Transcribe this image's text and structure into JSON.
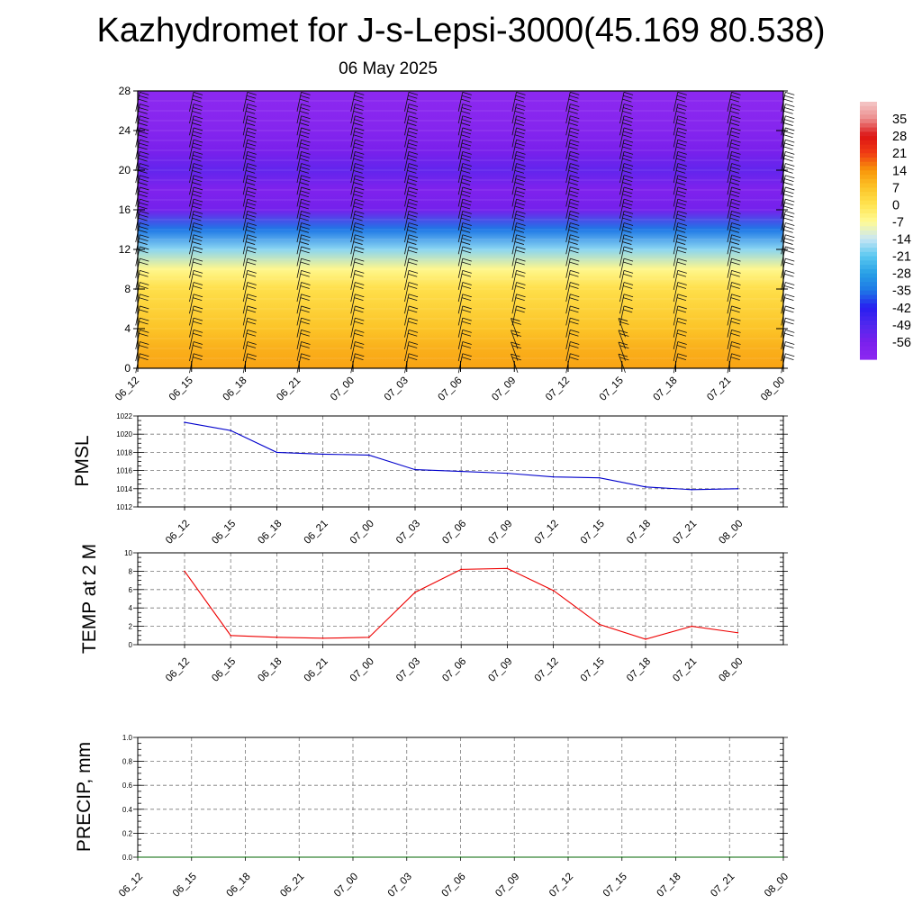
{
  "title": "Kazhydromet for J-s-Lepsi-3000(45.169 80.538)",
  "date": "06 May 2025",
  "colors": {
    "pmsl_line": "#0000cc",
    "temp_line": "#ee0000",
    "precip_line": "#006400",
    "grid": "#777777",
    "wind_barb": "#111111"
  },
  "chart_data": [
    {
      "type": "heatmap",
      "name": "cross-section",
      "x_ticks": [
        "06_12",
        "06_15",
        "06_18",
        "06_21",
        "07_00",
        "07_03",
        "07_06",
        "07_09",
        "07_12",
        "07_15",
        "07_18",
        "07_21",
        "08_00"
      ],
      "y_ticks": [
        "0",
        "4",
        "8",
        "12",
        "16",
        "20",
        "24",
        "28"
      ],
      "ylim": [
        0,
        28
      ],
      "colorbar": {
        "labels": [
          "35",
          "28",
          "21",
          "14",
          "7",
          "0",
          "-7",
          "-14",
          "-21",
          "-28",
          "-35",
          "-42",
          "-49",
          "-56"
        ],
        "range": [
          -63,
          42
        ]
      },
      "y_levels": [
        0,
        2,
        4,
        6,
        8,
        10,
        12,
        14,
        16,
        18,
        20,
        22,
        24,
        26,
        28
      ],
      "temperature_profile": [
        12,
        10,
        7,
        4,
        1,
        -6,
        -18,
        -35,
        -55,
        -58,
        -52,
        -56,
        -60,
        -62,
        -63
      ]
    },
    {
      "type": "line",
      "ylabel": "PMSL",
      "x": [
        "06_12",
        "06_15",
        "06_18",
        "06_21",
        "07_00",
        "07_03",
        "07_06",
        "07_09",
        "07_12",
        "07_15",
        "07_18",
        "07_21",
        "08_00"
      ],
      "values": [
        1021.3,
        1020.4,
        1018.0,
        1017.8,
        1017.7,
        1016.1,
        1015.9,
        1015.7,
        1015.3,
        1015.2,
        1014.2,
        1013.9,
        1014.0
      ],
      "ylim": [
        1012,
        1022
      ],
      "y_ticks": [
        "1012",
        "1014",
        "1016",
        "1018",
        "1020",
        "1022"
      ]
    },
    {
      "type": "line",
      "ylabel": "TEMP at 2 M",
      "x": [
        "06_12",
        "06_15",
        "06_18",
        "06_21",
        "07_00",
        "07_03",
        "07_06",
        "07_09",
        "07_12",
        "07_15",
        "07_18",
        "07_21",
        "08_00"
      ],
      "values": [
        8.0,
        1.0,
        0.8,
        0.7,
        0.8,
        5.7,
        8.2,
        8.3,
        5.9,
        2.2,
        0.6,
        2.0,
        1.3
      ],
      "ylim": [
        0,
        10
      ],
      "y_ticks": [
        "0",
        "2",
        "4",
        "6",
        "8",
        "10"
      ]
    },
    {
      "type": "line",
      "ylabel": "PRECIP, mm",
      "x": [
        "06_12",
        "06_15",
        "06_18",
        "06_21",
        "07_00",
        "07_03",
        "07_06",
        "07_09",
        "07_12",
        "07_15",
        "07_18",
        "07_21",
        "08_00"
      ],
      "values": [
        0,
        0,
        0,
        0,
        0,
        0,
        0,
        0,
        0,
        0,
        0,
        0,
        0
      ],
      "ylim": [
        0,
        1.0
      ],
      "y_ticks": [
        "0.0",
        "0.2",
        "0.4",
        "0.6",
        "0.8",
        "1.0"
      ]
    }
  ]
}
